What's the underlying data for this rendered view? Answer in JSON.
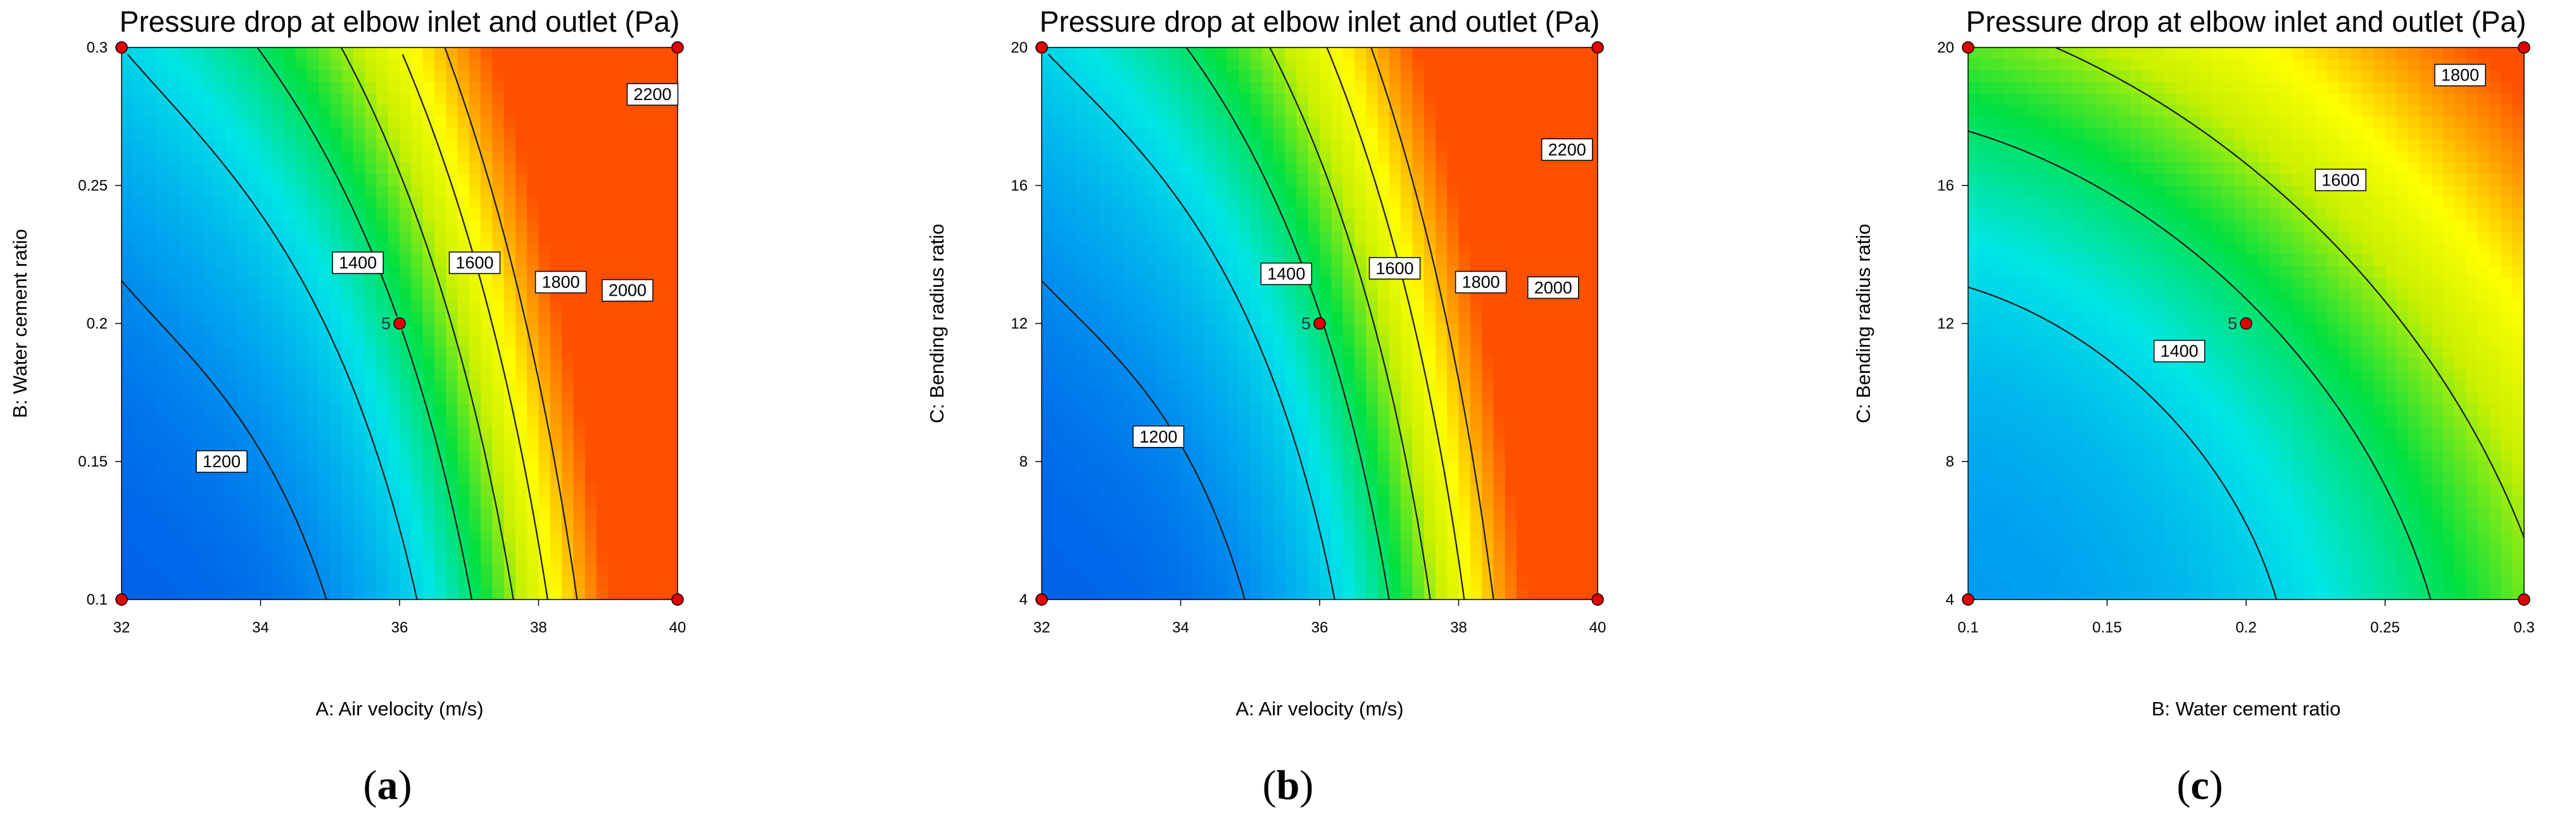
{
  "colors": {
    "scale": [
      "#0050e8",
      "#00a0f0",
      "#00e6e6",
      "#00e040",
      "#c8f000",
      "#ffff00",
      "#ffa000",
      "#ff5000"
    ],
    "contour_line": "#1a1a1a",
    "design_point": "#e00000"
  },
  "chart_data": [
    {
      "type": "contour",
      "panel": "a",
      "title": "Pressure drop at elbow inlet and outlet (Pa)",
      "xlabel": "A: Air velocity (m/s)",
      "ylabel": "B: Water cement ratio",
      "xlim": [
        32,
        40
      ],
      "ylim": [
        0.1,
        0.3
      ],
      "xticks": [
        32,
        34,
        36,
        38,
        40
      ],
      "yticks": [
        0.1,
        0.15,
        0.2,
        0.25,
        0.3
      ],
      "xtick_labels": [
        "32",
        "34",
        "36",
        "38",
        "40"
      ],
      "ytick_labels": [
        "0.1",
        "0.15",
        "0.2",
        "0.25",
        "0.3"
      ],
      "contour_levels": [
        1200,
        1400,
        1600,
        1800,
        2000,
        2200
      ],
      "contour_label_text": [
        "1200",
        "1400",
        "1600",
        "1800",
        "2000",
        "2200"
      ],
      "center_point": {
        "x": 36,
        "y": 0.2,
        "label": "5"
      },
      "design_points": [
        [
          32,
          0.1
        ],
        [
          40,
          0.1
        ],
        [
          32,
          0.3
        ],
        [
          40,
          0.3
        ]
      ]
    },
    {
      "type": "contour",
      "panel": "b",
      "title": "Pressure drop at elbow inlet and outlet (Pa)",
      "xlabel": "A: Air velocity (m/s)",
      "ylabel": "C: Bending radius ratio",
      "xlim": [
        32,
        40
      ],
      "ylim": [
        4,
        20
      ],
      "xticks": [
        32,
        34,
        36,
        38,
        40
      ],
      "yticks": [
        4,
        8,
        12,
        16,
        20
      ],
      "xtick_labels": [
        "32",
        "34",
        "36",
        "38",
        "40"
      ],
      "ytick_labels": [
        "4",
        "8",
        "12",
        "16",
        "20"
      ],
      "contour_levels": [
        1200,
        1400,
        1600,
        1800,
        2000,
        2200
      ],
      "contour_label_text": [
        "1200",
        "1400",
        "1600",
        "1800",
        "2000",
        "2200"
      ],
      "center_point": {
        "x": 36,
        "y": 12,
        "label": "5"
      },
      "design_points": [
        [
          32,
          4
        ],
        [
          40,
          4
        ],
        [
          32,
          20
        ],
        [
          40,
          20
        ]
      ]
    },
    {
      "type": "contour",
      "panel": "c",
      "title": "Pressure drop at elbow inlet and outlet (Pa)",
      "xlabel": "B: Water cement ratio",
      "ylabel": "C: Bending radius ratio",
      "xlim": [
        0.1,
        0.3
      ],
      "ylim": [
        4,
        20
      ],
      "xticks": [
        0.1,
        0.15,
        0.2,
        0.25,
        0.3
      ],
      "yticks": [
        4,
        8,
        12,
        16,
        20
      ],
      "xtick_labels": [
        "0.1",
        "0.15",
        "0.2",
        "0.25",
        "0.3"
      ],
      "ytick_labels": [
        "4",
        "8",
        "12",
        "16",
        "20"
      ],
      "contour_levels": [
        1400,
        1600,
        1800
      ],
      "contour_label_text": [
        "1400",
        "1600",
        "1800"
      ],
      "center_point": {
        "x": 0.2,
        "y": 12,
        "label": "5"
      },
      "design_points": [
        [
          0.1,
          4
        ],
        [
          0.3,
          4
        ],
        [
          0.1,
          20
        ],
        [
          0.3,
          20
        ]
      ]
    }
  ],
  "captions": [
    {
      "open": "(",
      "letter": "a",
      "close": ")"
    },
    {
      "open": "(",
      "letter": "b",
      "close": ")"
    },
    {
      "open": "(",
      "letter": "c",
      "close": ")"
    }
  ]
}
